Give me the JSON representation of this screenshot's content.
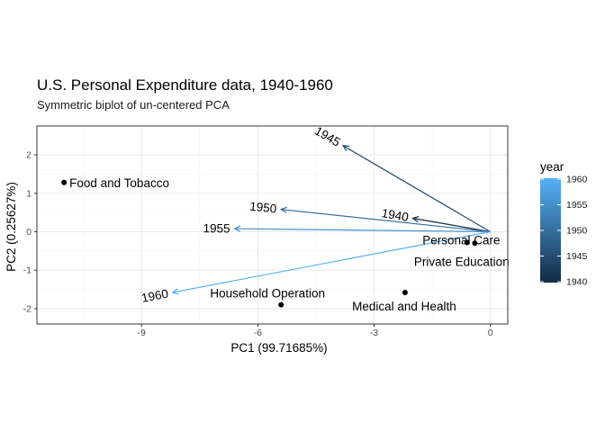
{
  "chart_data": {
    "type": "scatter",
    "title": "U.S. Personal Expenditure data, 1940-1960",
    "subtitle": "Symmetric biplot of un-centered PCA",
    "xlabel": "PC1 (99.71685%)",
    "ylabel": "PC2 (0.25627%)",
    "xlim": [
      -11.7,
      0.45
    ],
    "ylim": [
      -2.4,
      2.75
    ],
    "xticks": [
      -9,
      -6,
      -3,
      0
    ],
    "xtick_labels": [
      "-9",
      "-6",
      "-3",
      "0"
    ],
    "yticks": [
      -2,
      -1,
      0,
      1,
      2
    ],
    "ytick_labels": [
      "-2",
      "-1",
      "0",
      "1",
      "2"
    ],
    "grid": true,
    "points": [
      {
        "label": "Food and Tobacco",
        "x": -11.0,
        "y": 1.28
      },
      {
        "label": "Household Operation",
        "x": -5.4,
        "y": -1.9
      },
      {
        "label": "Medical and Health",
        "x": -2.2,
        "y": -1.58
      },
      {
        "label": "Personal Care",
        "x": -0.4,
        "y": -0.3
      },
      {
        "label": "Private Education",
        "x": -0.6,
        "y": -0.28
      }
    ],
    "arrows": [
      {
        "label": "1940",
        "year": 1940,
        "x": -2.0,
        "y": 0.35
      },
      {
        "label": "1945",
        "year": 1945,
        "x": -3.8,
        "y": 2.24
      },
      {
        "label": "1950",
        "year": 1950,
        "x": -5.4,
        "y": 0.58
      },
      {
        "label": "1955",
        "year": 1955,
        "x": -6.6,
        "y": 0.08
      },
      {
        "label": "1960",
        "year": 1960,
        "x": -8.2,
        "y": -1.58
      }
    ],
    "legend": {
      "title": "year",
      "position": "right",
      "min": 1940,
      "max": 1960,
      "labels": [
        "1960",
        "1955",
        "1950",
        "1945",
        "1940"
      ],
      "color_low": "#132B43",
      "color_high": "#56B1F7"
    },
    "colors": {
      "panel_border": "#333333",
      "grid_major": "#ebebeb",
      "grid_minor": "#f5f5f5",
      "point": "#000000"
    }
  }
}
